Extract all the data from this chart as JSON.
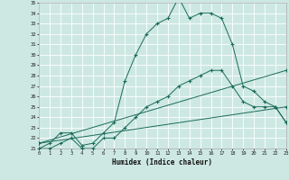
{
  "xlabel": "Humidex (Indice chaleur)",
  "bg_color": "#cde8e2",
  "grid_color": "#ffffff",
  "line_color": "#1a6b5a",
  "xmin": 0,
  "xmax": 23,
  "ymin": 21,
  "ymax": 35,
  "x_ticks": [
    0,
    1,
    2,
    3,
    4,
    5,
    6,
    7,
    8,
    9,
    10,
    11,
    12,
    13,
    14,
    15,
    16,
    17,
    18,
    19,
    20,
    21,
    22,
    23
  ],
  "y_ticks": [
    21,
    22,
    23,
    24,
    25,
    26,
    27,
    28,
    29,
    30,
    31,
    32,
    33,
    34,
    35
  ],
  "line1_x": [
    0,
    1,
    2,
    3,
    4,
    5,
    6,
    7,
    8,
    9,
    10,
    11,
    12,
    13,
    14,
    15,
    16,
    17,
    18,
    19,
    20,
    21,
    22,
    23
  ],
  "line1_y": [
    21,
    21.5,
    22.5,
    22.5,
    21.3,
    21.5,
    22.5,
    23.5,
    27.5,
    30,
    32,
    33,
    33.5,
    35.5,
    33.5,
    34,
    34,
    33.5,
    31,
    27,
    26.5,
    25.5,
    25,
    23.5
  ],
  "line2_x": [
    0,
    1,
    2,
    3,
    4,
    5,
    6,
    7,
    8,
    9,
    10,
    11,
    12,
    13,
    14,
    15,
    16,
    17,
    18,
    19,
    20,
    21,
    22,
    23
  ],
  "line2_y": [
    21,
    21,
    21.5,
    22,
    21,
    21,
    22,
    22,
    23,
    24,
    25,
    25.5,
    26,
    27,
    27.5,
    28,
    28.5,
    28.5,
    27,
    25.5,
    25,
    25,
    25,
    23.5
  ],
  "line3_x": [
    0,
    23
  ],
  "line3_y": [
    21.5,
    28.5
  ],
  "line4_x": [
    0,
    23
  ],
  "line4_y": [
    21.5,
    25
  ],
  "marker": "+"
}
